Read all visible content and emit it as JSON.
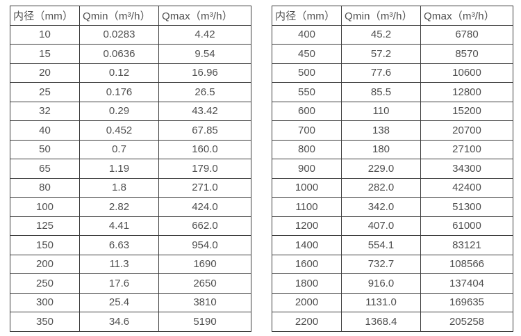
{
  "page": {
    "background_color": "#ffffff",
    "text_color": "#4f4f4f",
    "border_color": "#3b3b3b"
  },
  "tables": [
    {
      "name": "flow-rate-table-small-diameters",
      "headers": [
        "内径（mm）",
        "Qmin（m³/h）",
        "Qmax（m³/h）"
      ],
      "rows": [
        [
          "10",
          "0.0283",
          "4.42"
        ],
        [
          "15",
          "0.0636",
          "9.54"
        ],
        [
          "20",
          "0.12",
          "16.96"
        ],
        [
          "25",
          "0.176",
          "26.5"
        ],
        [
          "32",
          "0.29",
          "43.42"
        ],
        [
          "40",
          "0.452",
          "67.85"
        ],
        [
          "50",
          "0.7",
          "160.0"
        ],
        [
          "65",
          "1.19",
          "179.0"
        ],
        [
          "80",
          "1.8",
          "271.0"
        ],
        [
          "100",
          "2.82",
          "424.0"
        ],
        [
          "125",
          "4.41",
          "662.0"
        ],
        [
          "150",
          "6.63",
          "954.0"
        ],
        [
          "200",
          "11.3",
          "1690"
        ],
        [
          "250",
          "17.6",
          "2650"
        ],
        [
          "300",
          "25.4",
          "3810"
        ],
        [
          "350",
          "34.6",
          "5190"
        ]
      ]
    },
    {
      "name": "flow-rate-table-large-diameters",
      "headers": [
        "内径（mm）",
        "Qmin（m³/h）",
        "Qmax（m³/h）"
      ],
      "rows": [
        [
          "400",
          "45.2",
          "6780"
        ],
        [
          "450",
          "57.2",
          "8570"
        ],
        [
          "500",
          "77.6",
          "10600"
        ],
        [
          "550",
          "85.5",
          "12800"
        ],
        [
          "600",
          "110",
          "15200"
        ],
        [
          "700",
          "138",
          "20700"
        ],
        [
          "800",
          "180",
          "27100"
        ],
        [
          "900",
          "229.0",
          "34300"
        ],
        [
          "1000",
          "282.0",
          "42400"
        ],
        [
          "1100",
          "342.0",
          "51300"
        ],
        [
          "1200",
          "407.0",
          "61000"
        ],
        [
          "1400",
          "554.1",
          "83121"
        ],
        [
          "1600",
          "732.7",
          "108566"
        ],
        [
          "1800",
          "916.0",
          "137404"
        ],
        [
          "2000",
          "1131.0",
          "169635"
        ],
        [
          "2200",
          "1368.4",
          "205258"
        ]
      ]
    }
  ]
}
